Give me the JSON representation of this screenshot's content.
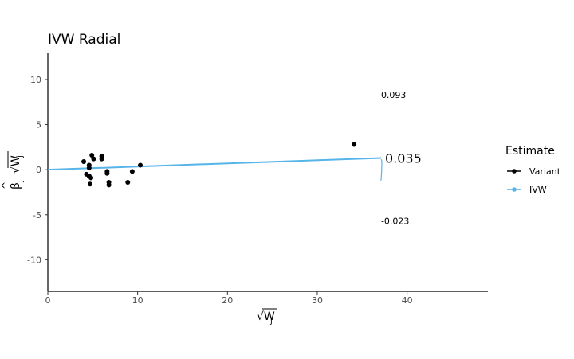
{
  "chart_data": {
    "type": "scatter",
    "title": "IVW Radial",
    "xlabel": "√W",
    "xlabel_sub": "j",
    "ylabel": "β",
    "ylabel_sub": "j",
    "ylabel_sqrt": "√W",
    "ylabel_sqrt_sub": "j",
    "xlim": [
      0,
      49
    ],
    "ylim": [
      -13.5,
      13
    ],
    "x_ticks": [
      0,
      10,
      20,
      30,
      40
    ],
    "y_ticks": [
      -10,
      -5,
      0,
      5,
      10
    ],
    "x_tick_labels": [
      "0",
      "10",
      "20",
      "30",
      "40"
    ],
    "y_tick_labels": [
      "-10",
      "-5",
      "0",
      "5",
      "10"
    ],
    "grid": false,
    "series": [
      {
        "name": "Variant",
        "color": "#000000",
        "points": [
          {
            "x": 4.0,
            "y": 0.9
          },
          {
            "x": 4.3,
            "y": -0.5
          },
          {
            "x": 4.6,
            "y": -0.7
          },
          {
            "x": 4.6,
            "y": 0.5
          },
          {
            "x": 4.6,
            "y": 0.2
          },
          {
            "x": 4.7,
            "y": -1.6
          },
          {
            "x": 4.8,
            "y": -0.9
          },
          {
            "x": 4.9,
            "y": 1.6
          },
          {
            "x": 5.1,
            "y": 1.2
          },
          {
            "x": 6.0,
            "y": 1.2
          },
          {
            "x": 6.0,
            "y": 1.5
          },
          {
            "x": 6.6,
            "y": -0.2
          },
          {
            "x": 6.6,
            "y": -0.4
          },
          {
            "x": 6.8,
            "y": -1.4
          },
          {
            "x": 6.8,
            "y": -1.7
          },
          {
            "x": 8.9,
            "y": -1.4
          },
          {
            "x": 9.4,
            "y": -0.2
          },
          {
            "x": 10.3,
            "y": 0.5
          },
          {
            "x": 34.1,
            "y": 2.8
          }
        ]
      },
      {
        "name": "IVW",
        "color": "#56b4e9",
        "slope": 0.035,
        "x_end": 37.1
      }
    ],
    "annotations": [
      {
        "text": "0.093",
        "x": 37.1,
        "y": 8.3,
        "size": "small"
      },
      {
        "text": "0.035",
        "x": 37.1,
        "y": 1.3,
        "size": "big"
      },
      {
        "text": "-0.023",
        "x": 37.1,
        "y": -5.7,
        "size": "small"
      }
    ],
    "legend": {
      "title": "Estimate",
      "placement": "right",
      "items": [
        {
          "label": "Variant",
          "color": "#000000"
        },
        {
          "label": "IVW",
          "color": "#56b4e9"
        }
      ]
    }
  }
}
